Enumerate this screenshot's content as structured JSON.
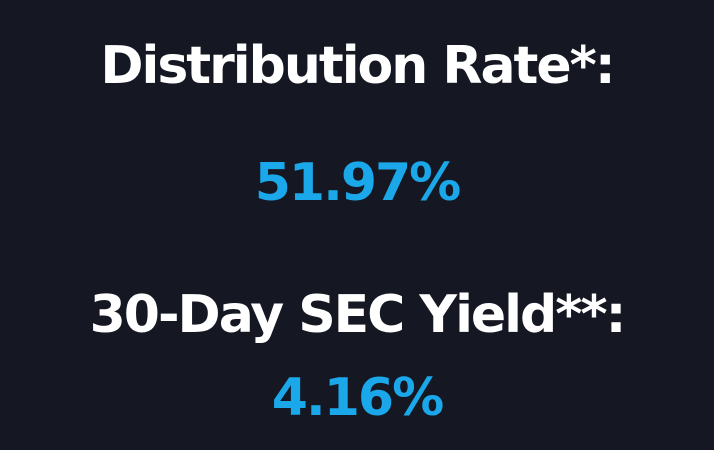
{
  "distribution": {
    "label": "Distribution Rate*:",
    "value": "51.97%"
  },
  "sec_yield": {
    "label": "30-Day SEC Yield**:",
    "value": "4.16%"
  },
  "colors": {
    "background": "#151823",
    "label": "#ffffff",
    "value": "#1aa8ea"
  }
}
